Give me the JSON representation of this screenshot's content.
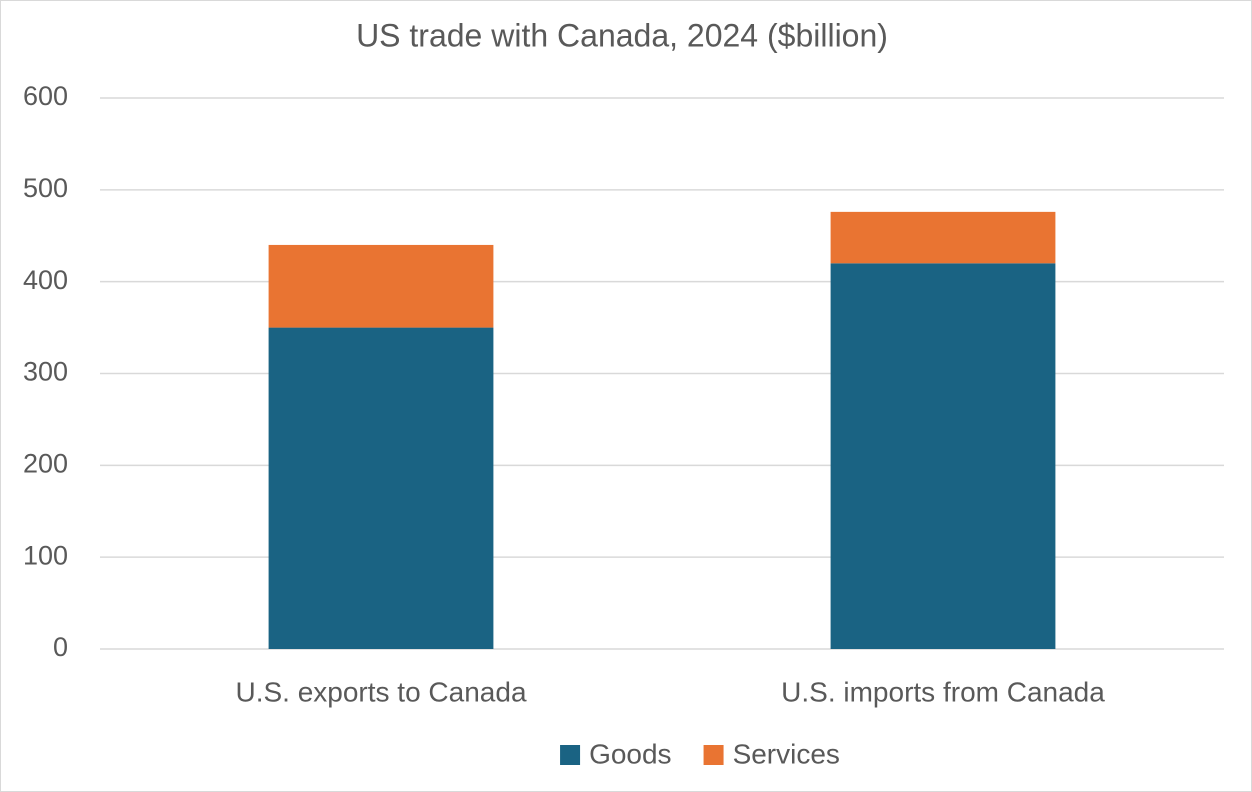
{
  "chart_data": {
    "type": "stacked_bar",
    "title": "US trade with Canada, 2024 ($billion)",
    "categories": [
      "U.S. exports to Canada",
      "U.S. imports from Canada"
    ],
    "series": [
      {
        "name": "Goods",
        "color": "#1a6383",
        "values": [
          350,
          420
        ]
      },
      {
        "name": "Services",
        "color": "#e97432",
        "values": [
          90,
          56
        ]
      }
    ],
    "ylim": [
      0,
      600
    ],
    "yticks": [
      0,
      100,
      200,
      300,
      400,
      500,
      600
    ],
    "grid": true,
    "legend": "bottom"
  }
}
